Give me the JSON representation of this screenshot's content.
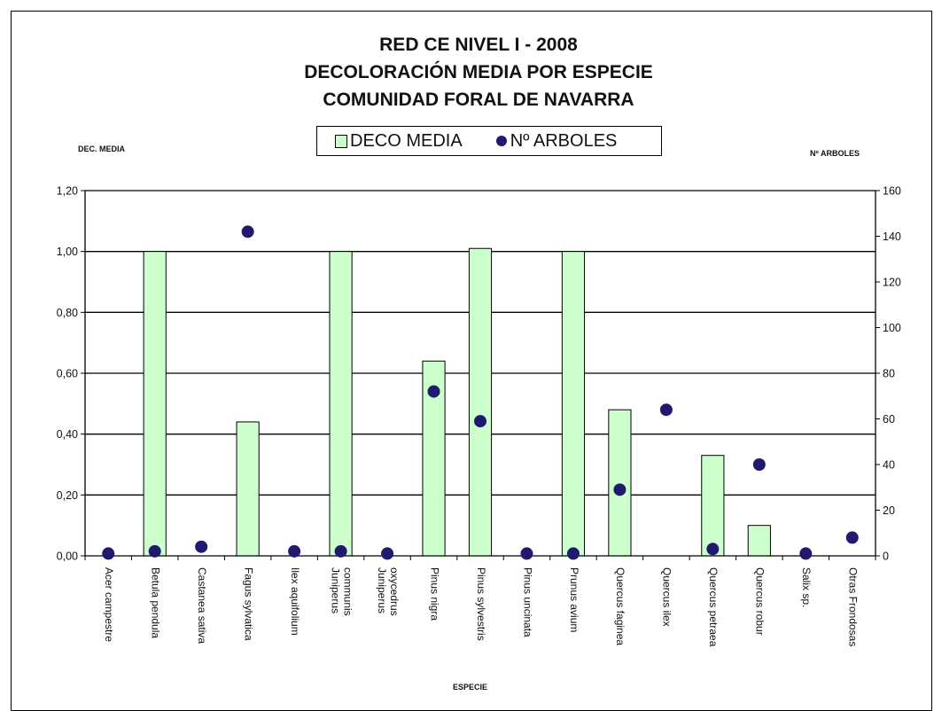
{
  "title_lines": [
    "RED CE NIVEL I - 2008",
    "DECOLORACIÓN MEDIA POR ESPECIE",
    "COMUNIDAD FORAL DE NAVARRA"
  ],
  "legend": {
    "bar_label": "DECO MEDIA",
    "dot_label": "Nº ARBOLES"
  },
  "axes": {
    "left_title": "DEC. MEDIA",
    "right_title": "Nº ARBOLES",
    "x_title": "ESPECIE"
  },
  "colors": {
    "bar_fill": "#ccffcc",
    "dot": "#1f1a6e",
    "grid": "#000000"
  },
  "chart_data": {
    "type": "bar",
    "title": "RED CE NIVEL I - 2008 DECOLORACIÓN MEDIA POR ESPECIE COMUNIDAD FORAL DE NAVARRA",
    "xlabel": "ESPECIE",
    "ylabel": "DEC. MEDIA",
    "ylabel_right": "Nº ARBOLES",
    "ylim": [
      0,
      1.2
    ],
    "ylim_right": [
      0,
      160
    ],
    "yticks": [
      "0,00",
      "0,20",
      "0,40",
      "0,60",
      "0,80",
      "1,00",
      "1,20"
    ],
    "yticks_right": [
      "0",
      "20",
      "40",
      "60",
      "80",
      "100",
      "120",
      "140",
      "160"
    ],
    "grid": true,
    "legend_position": "top-center",
    "categories": [
      [
        "Acer campestre"
      ],
      [
        "Betula pendula"
      ],
      [
        "Castanea sativa"
      ],
      [
        "Fagus sylvatica"
      ],
      [
        "Ilex aquifolium"
      ],
      [
        "Juniperus",
        "communis"
      ],
      [
        "Juniperus",
        "oxycedrus"
      ],
      [
        "Pinus nigra"
      ],
      [
        "Pinus sylvestris"
      ],
      [
        "Pinus uncinata"
      ],
      [
        "Prunus avium"
      ],
      [
        "Quercus faginea"
      ],
      [
        "Quercus ilex"
      ],
      [
        "Quercus petraea"
      ],
      [
        "Quercus robur"
      ],
      [
        "Salix sp."
      ],
      [
        "Otras Frondosas"
      ]
    ],
    "series": [
      {
        "name": "DECO MEDIA",
        "type": "bar",
        "axis": "left",
        "values": [
          0,
          1.0,
          0,
          0.44,
          0,
          1.0,
          0,
          0.64,
          1.01,
          0,
          1.0,
          0.48,
          0,
          0.33,
          0.1,
          0,
          0
        ]
      },
      {
        "name": "Nº ARBOLES",
        "type": "scatter",
        "axis": "right",
        "values": [
          1,
          2,
          4,
          142,
          2,
          2,
          1,
          72,
          59,
          1,
          1,
          29,
          64,
          3,
          40,
          1,
          8
        ]
      }
    ]
  }
}
